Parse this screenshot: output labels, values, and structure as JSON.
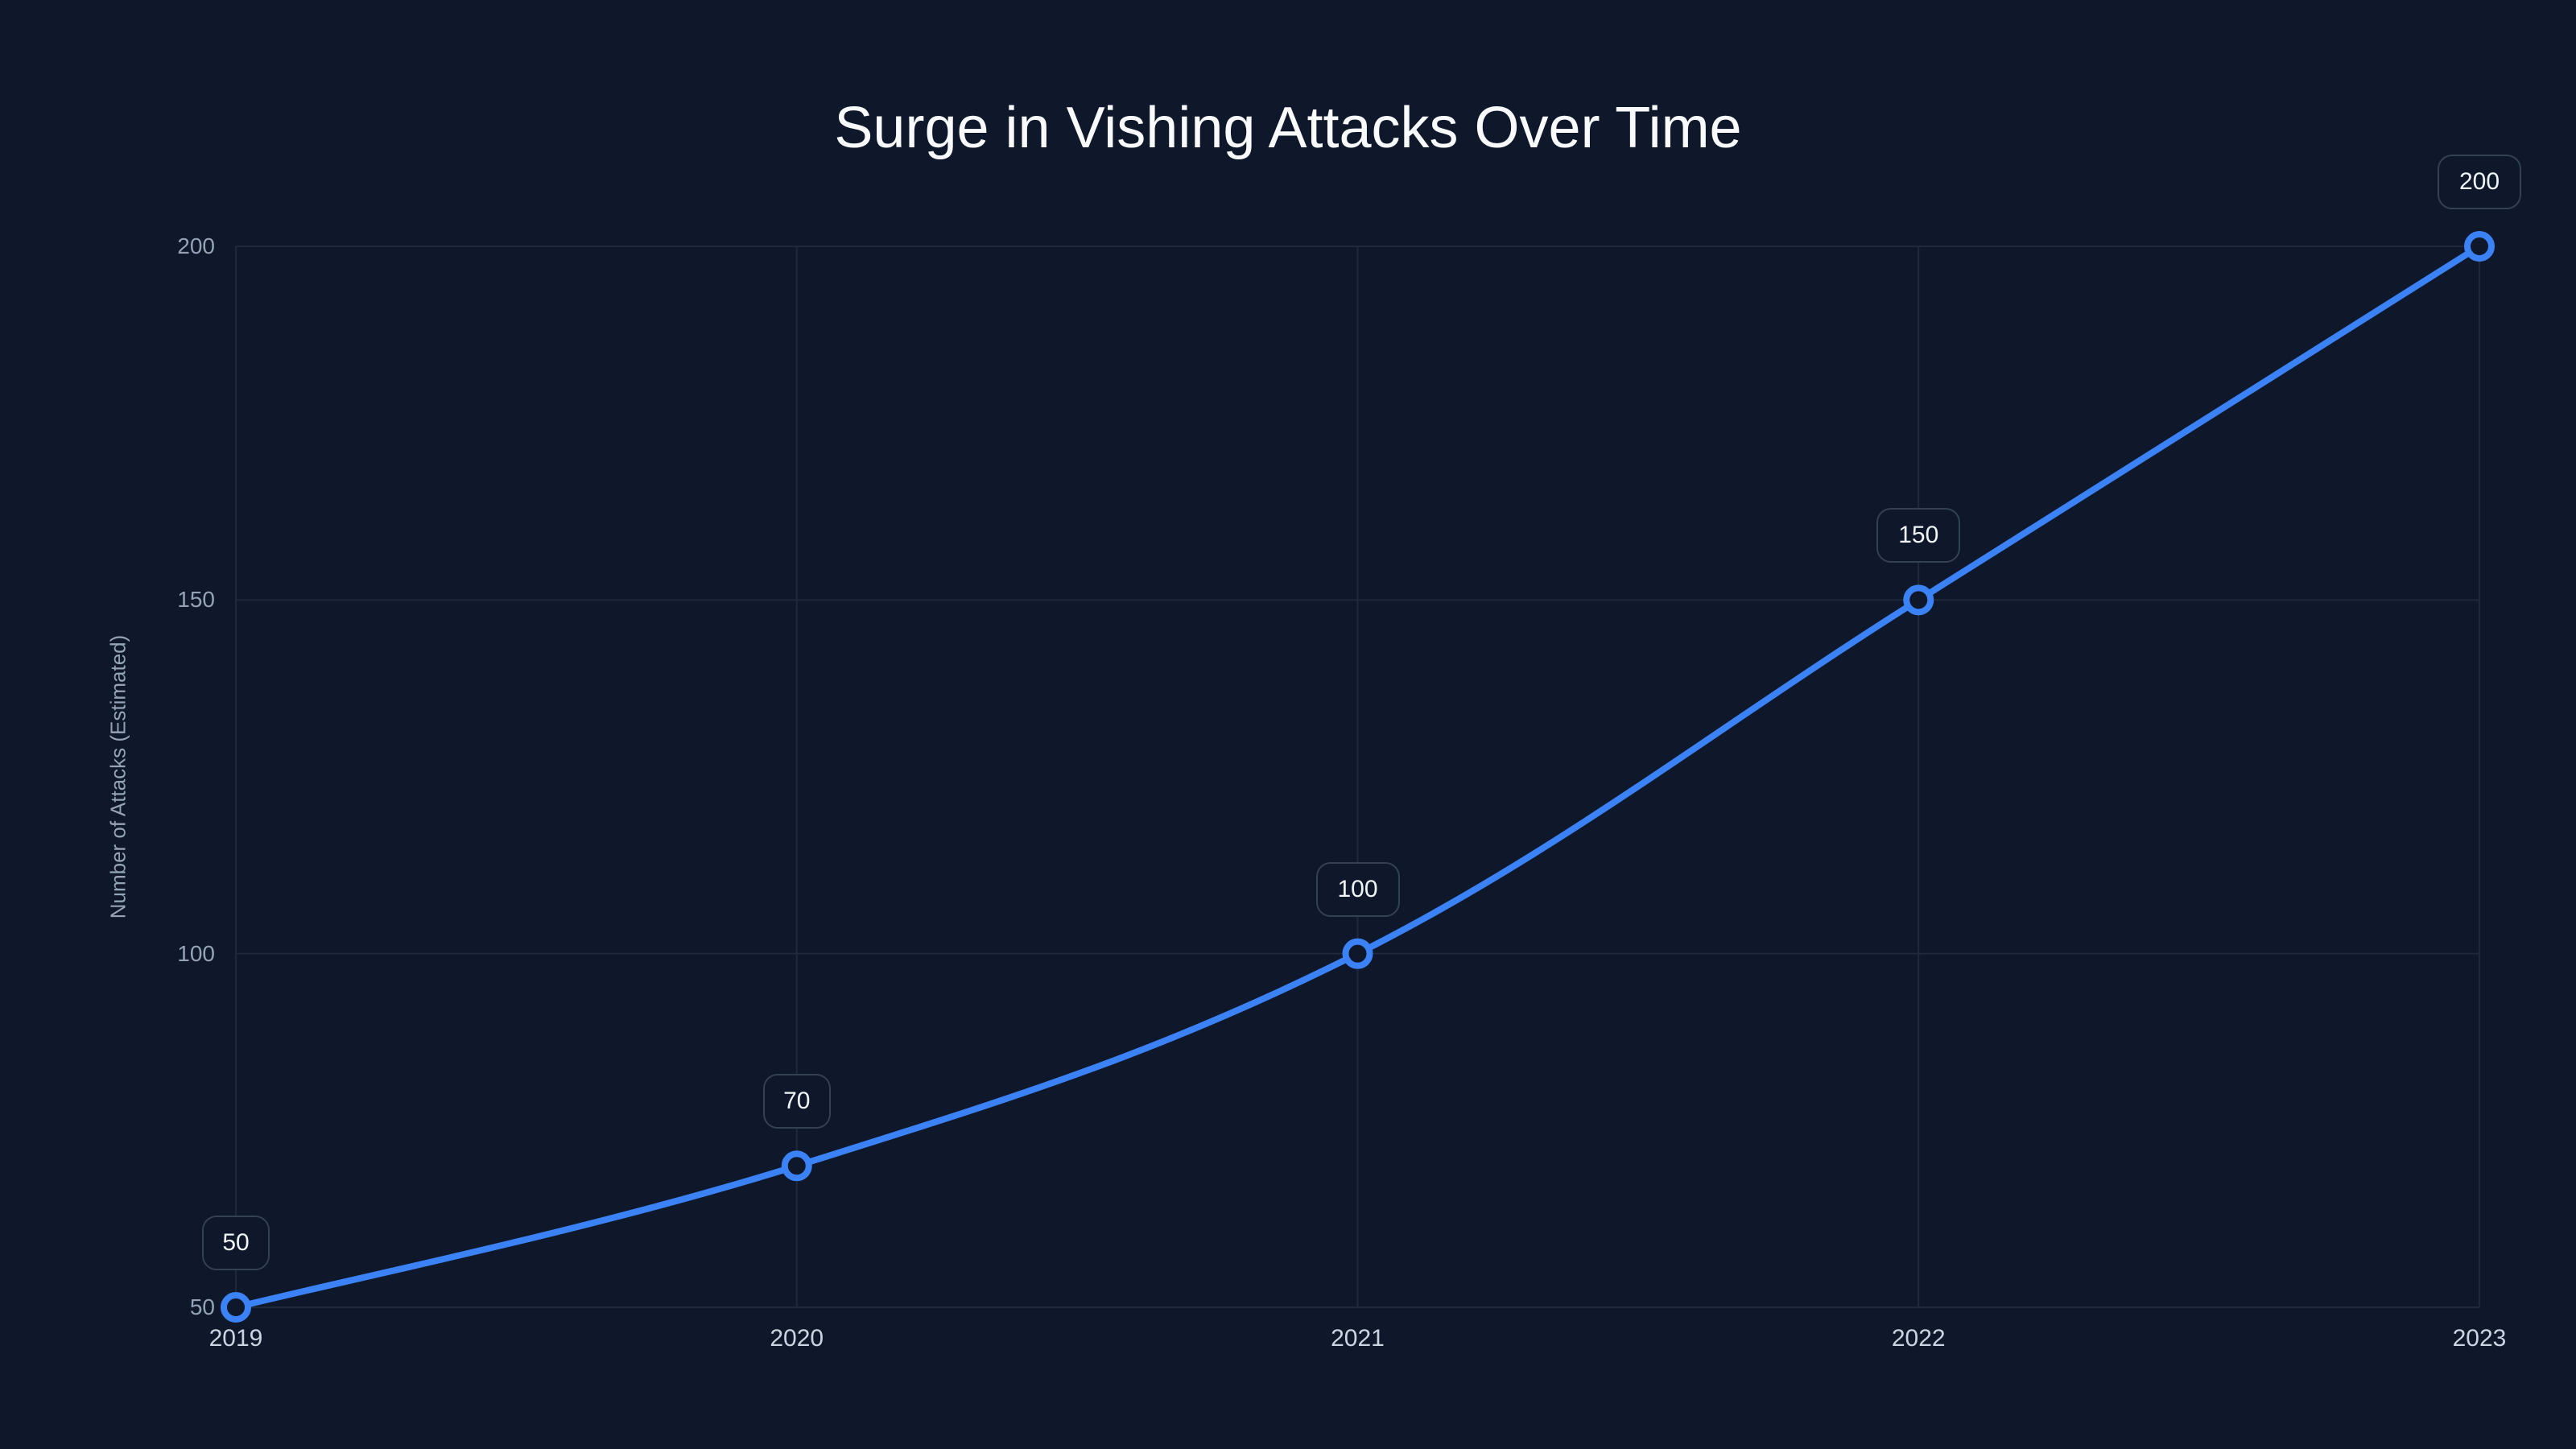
{
  "chart_data": {
    "type": "line",
    "title": "Surge in Vishing Attacks Over Time",
    "xlabel": "",
    "ylabel": "Number of Attacks (Estimated)",
    "categories": [
      "2019",
      "2020",
      "2021",
      "2022",
      "2023"
    ],
    "series": [
      {
        "name": "Vishing Attacks",
        "values": [
          50,
          70,
          100,
          150,
          200
        ],
        "color": "#3b82f6"
      }
    ],
    "data_labels": [
      "50",
      "70",
      "100",
      "150",
      "200"
    ],
    "yticks": [
      "200",
      "150",
      "100",
      "50"
    ],
    "ylim": [
      50,
      200
    ],
    "grid": true,
    "legend": "none",
    "smooth": true
  },
  "colors": {
    "background": "#0f182a",
    "line": "#3b82f6",
    "grid": "#1e293b",
    "label_border": "#334155"
  }
}
